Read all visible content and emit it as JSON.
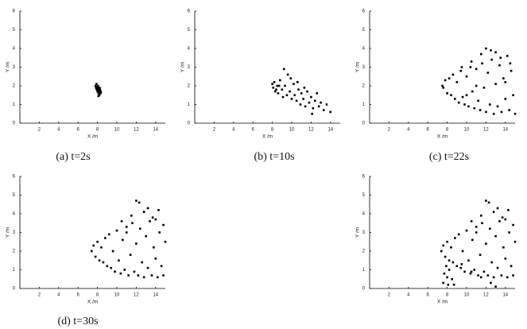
{
  "chart_data": [
    {
      "type": "scatter",
      "caption": "(a) t=2s",
      "xlabel": "X /m",
      "ylabel": "Y /m",
      "xlim": [
        0,
        15
      ],
      "ylim": [
        0,
        6
      ],
      "xticks": [
        2,
        4,
        6,
        8,
        10,
        12,
        14
      ],
      "yticks": [
        0,
        1,
        2,
        3,
        4,
        5,
        6
      ],
      "series": [
        {
          "color": "#000000",
          "x": [
            7.8,
            7.9,
            7.85,
            8.0,
            8.1,
            8.2,
            8.0,
            8.1,
            8.3,
            8.2,
            8.25,
            7.95,
            8.05,
            8.15,
            8.3,
            8.1,
            8.35,
            7.9,
            8.0,
            8.2
          ],
          "y": [
            2.0,
            2.1,
            1.9,
            1.95,
            1.8,
            1.7,
            1.7,
            1.6,
            1.6,
            1.5,
            1.85,
            1.8,
            2.0,
            1.75,
            1.75,
            1.45,
            1.65,
            1.85,
            1.85,
            1.9
          ]
        }
      ]
    },
    {
      "type": "scatter",
      "caption": "(b) t=10s",
      "xlabel": "X /m",
      "ylabel": "Y /m",
      "xlim": [
        0,
        15
      ],
      "ylim": [
        0,
        6
      ],
      "xticks": [
        2,
        4,
        6,
        8,
        10,
        12,
        14
      ],
      "yticks": [
        0,
        1,
        2,
        3,
        4,
        5,
        6
      ],
      "series": [
        {
          "color": "#000000",
          "x": [
            8.0,
            8.1,
            8.2,
            8.3,
            8.5,
            8.6,
            8.8,
            9.0,
            9.1,
            9.3,
            9.5,
            9.6,
            9.8,
            10.0,
            10.2,
            10.3,
            10.5,
            10.7,
            10.9,
            11.0,
            11.2,
            11.4,
            11.6,
            11.8,
            12.0,
            12.2,
            12.4,
            12.6,
            12.8,
            13.0,
            13.3,
            13.6,
            14.0,
            9.2,
            9.9,
            10.6,
            11.3,
            12.1,
            8.4,
            8.7
          ],
          "y": [
            2.1,
            1.9,
            2.2,
            1.7,
            2.0,
            1.6,
            2.3,
            1.8,
            1.4,
            2.0,
            1.5,
            2.6,
            1.7,
            1.3,
            2.1,
            1.5,
            1.2,
            1.8,
            1.0,
            1.6,
            1.3,
            0.9,
            1.7,
            1.1,
            1.4,
            0.8,
            1.2,
            1.6,
            0.9,
            1.1,
            0.7,
            1.0,
            0.6,
            2.9,
            2.4,
            2.2,
            1.9,
            0.5,
            1.8,
            2.0
          ]
        }
      ]
    },
    {
      "type": "scatter",
      "caption": "(c) t=22s",
      "xlabel": "X /m",
      "ylabel": "Y /m",
      "xlim": [
        0,
        15
      ],
      "ylim": [
        0,
        6
      ],
      "xticks": [
        2,
        4,
        6,
        8,
        10,
        12,
        14
      ],
      "yticks": [
        0,
        1,
        2,
        3,
        4,
        5,
        6
      ],
      "series": [
        {
          "color": "#000000",
          "x": [
            7.5,
            7.6,
            7.8,
            8.0,
            8.2,
            8.4,
            8.6,
            8.8,
            9.0,
            9.2,
            9.4,
            9.6,
            9.8,
            10.0,
            10.2,
            10.4,
            10.6,
            10.8,
            11.0,
            11.2,
            11.4,
            11.6,
            11.8,
            12.0,
            12.2,
            12.4,
            12.6,
            12.8,
            13.0,
            13.2,
            13.4,
            13.6,
            13.8,
            14.0,
            14.2,
            14.4,
            14.6,
            14.8,
            15.0,
            9.5,
            10.5,
            11.5,
            12.5,
            13.5,
            14.5,
            12.0,
            13.0,
            10.0,
            11.0,
            14.0
          ],
          "y": [
            2.0,
            1.9,
            2.3,
            1.6,
            2.4,
            1.5,
            2.6,
            1.3,
            2.2,
            1.1,
            2.8,
            1.4,
            1.0,
            2.5,
            0.9,
            3.0,
            1.7,
            0.8,
            2.9,
            1.2,
            0.7,
            3.2,
            1.9,
            0.6,
            2.7,
            1.0,
            3.4,
            0.5,
            2.1,
            0.9,
            3.1,
            0.6,
            2.4,
            1.3,
            3.6,
            0.7,
            2.8,
            1.5,
            0.5,
            3.0,
            3.3,
            3.7,
            3.9,
            3.5,
            3.2,
            4.0,
            3.8,
            1.5,
            2.0,
            2.2
          ]
        }
      ]
    },
    {
      "type": "scatter",
      "caption": "(d) t=30s",
      "xlabel": "X /m",
      "ylabel": "Y /m",
      "xlim": [
        0,
        15
      ],
      "ylim": [
        0,
        6
      ],
      "xticks": [
        2,
        4,
        6,
        8,
        10,
        12,
        14
      ],
      "yticks": [
        0,
        1,
        2,
        3,
        4,
        5,
        6
      ],
      "series": [
        {
          "color": "#000000",
          "x": [
            7.4,
            7.6,
            7.8,
            8.0,
            8.2,
            8.4,
            8.6,
            8.8,
            9.0,
            9.2,
            9.4,
            9.6,
            9.8,
            10.0,
            10.2,
            10.4,
            10.6,
            10.8,
            11.0,
            11.2,
            11.4,
            11.6,
            11.8,
            12.0,
            12.2,
            12.4,
            12.6,
            12.8,
            13.0,
            13.2,
            13.4,
            13.6,
            13.8,
            14.0,
            14.2,
            14.4,
            14.6,
            14.8,
            15.0,
            10.5,
            11.5,
            12.3,
            12.8,
            13.2,
            13.7,
            14.3,
            14.8,
            12.0,
            11.0,
            14.0
          ],
          "y": [
            2.0,
            2.3,
            1.7,
            2.5,
            1.5,
            2.2,
            1.4,
            2.7,
            1.2,
            2.9,
            1.1,
            2.0,
            0.9,
            3.1,
            1.5,
            0.8,
            2.6,
            1.0,
            3.3,
            0.7,
            1.8,
            3.5,
            0.9,
            2.4,
            0.7,
            3.2,
            1.4,
            0.6,
            2.8,
            1.1,
            3.6,
            0.7,
            2.2,
            1.6,
            0.6,
            3.0,
            1.2,
            0.7,
            2.5,
            3.6,
            3.9,
            4.6,
            4.1,
            4.3,
            3.8,
            4.2,
            3.4,
            4.7,
            3.0,
            3.7
          ]
        }
      ]
    },
    {
      "type": "scatter",
      "xlabel": "X /m",
      "ylabel": "Y /m",
      "xlim": [
        0,
        15
      ],
      "ylim": [
        0,
        6
      ],
      "xticks": [
        2,
        4,
        6,
        8,
        10,
        12,
        14
      ],
      "yticks": [
        0,
        1,
        2,
        3,
        4,
        5,
        6
      ],
      "series": [
        {
          "color": "#000000",
          "x": [
            7.4,
            7.6,
            7.8,
            8.0,
            8.2,
            8.4,
            8.6,
            8.8,
            9.0,
            9.2,
            9.4,
            9.6,
            9.8,
            10.0,
            10.2,
            10.4,
            10.6,
            10.8,
            11.0,
            11.2,
            11.4,
            11.6,
            11.8,
            12.0,
            12.2,
            12.4,
            12.6,
            12.8,
            13.0,
            13.2,
            13.4,
            13.6,
            13.8,
            14.0,
            14.2,
            14.4,
            14.6,
            14.8,
            15.0,
            10.5,
            11.5,
            12.3,
            12.8,
            13.2,
            13.7,
            14.3,
            14.8,
            12.0,
            11.0,
            14.0,
            7.9,
            8.0,
            8.1,
            8.2,
            8.5,
            8.7,
            9.5,
            10.5,
            11.5,
            12.5,
            13.0,
            7.7,
            7.6
          ],
          "y": [
            2.0,
            2.3,
            1.7,
            2.5,
            1.5,
            2.2,
            1.4,
            2.7,
            1.2,
            2.9,
            1.1,
            2.0,
            0.9,
            3.1,
            1.5,
            0.8,
            2.6,
            1.0,
            3.3,
            0.7,
            1.8,
            3.5,
            0.9,
            2.4,
            0.7,
            3.2,
            1.4,
            0.6,
            2.8,
            1.1,
            3.6,
            0.7,
            2.2,
            1.6,
            0.6,
            3.0,
            1.2,
            0.7,
            2.5,
            3.6,
            3.9,
            4.6,
            4.1,
            4.3,
            3.8,
            4.2,
            3.4,
            4.7,
            3.0,
            3.7,
            1.2,
            0.6,
            0.2,
            1.0,
            0.5,
            0.2,
            1.3,
            0.9,
            0.6,
            0.3,
            0.1,
            0.8,
            0.3
          ]
        }
      ]
    }
  ]
}
